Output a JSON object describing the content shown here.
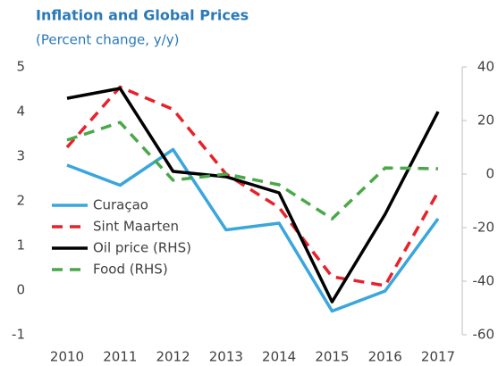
{
  "chart_data": {
    "type": "line",
    "title": "Inflation and Global Prices",
    "subtitle": "(Percent change, y/y)",
    "categories": [
      "2010",
      "2011",
      "2012",
      "2013",
      "2014",
      "2015",
      "2016",
      "2017"
    ],
    "series": [
      {
        "name": "Curaçao",
        "color": "#3aa6dd",
        "dashed": false,
        "values": [
          2.8,
          2.35,
          3.15,
          1.35,
          1.5,
          -0.47,
          -0.02,
          1.6
        ]
      },
      {
        "name": "Sint Maarten",
        "color": "#e8222a",
        "dashed": true,
        "values": [
          3.2,
          4.55,
          4.05,
          2.6,
          1.85,
          0.3,
          0.1,
          2.2
        ]
      },
      {
        "name": "Oil price (RHS)",
        "color": "#000000",
        "dashed": false,
        "axis": "y2",
        "values": [
          28.3,
          32,
          1,
          -1,
          -7,
          -47.7,
          -15,
          23.3
        ]
      },
      {
        "name": "Food (RHS)",
        "color": "#4aa84a",
        "dashed": true,
        "axis": "y2",
        "values": [
          12.7,
          19.3,
          -2.3,
          0,
          -4,
          -16.7,
          2.3,
          2
        ]
      }
    ],
    "ylim": [
      -1,
      5
    ],
    "yticks": [
      -1,
      0,
      1,
      2,
      3,
      4,
      5
    ],
    "y2lim": [
      -60,
      40
    ],
    "y2ticks": [
      -60,
      -40,
      -20,
      0,
      20,
      40
    ]
  }
}
